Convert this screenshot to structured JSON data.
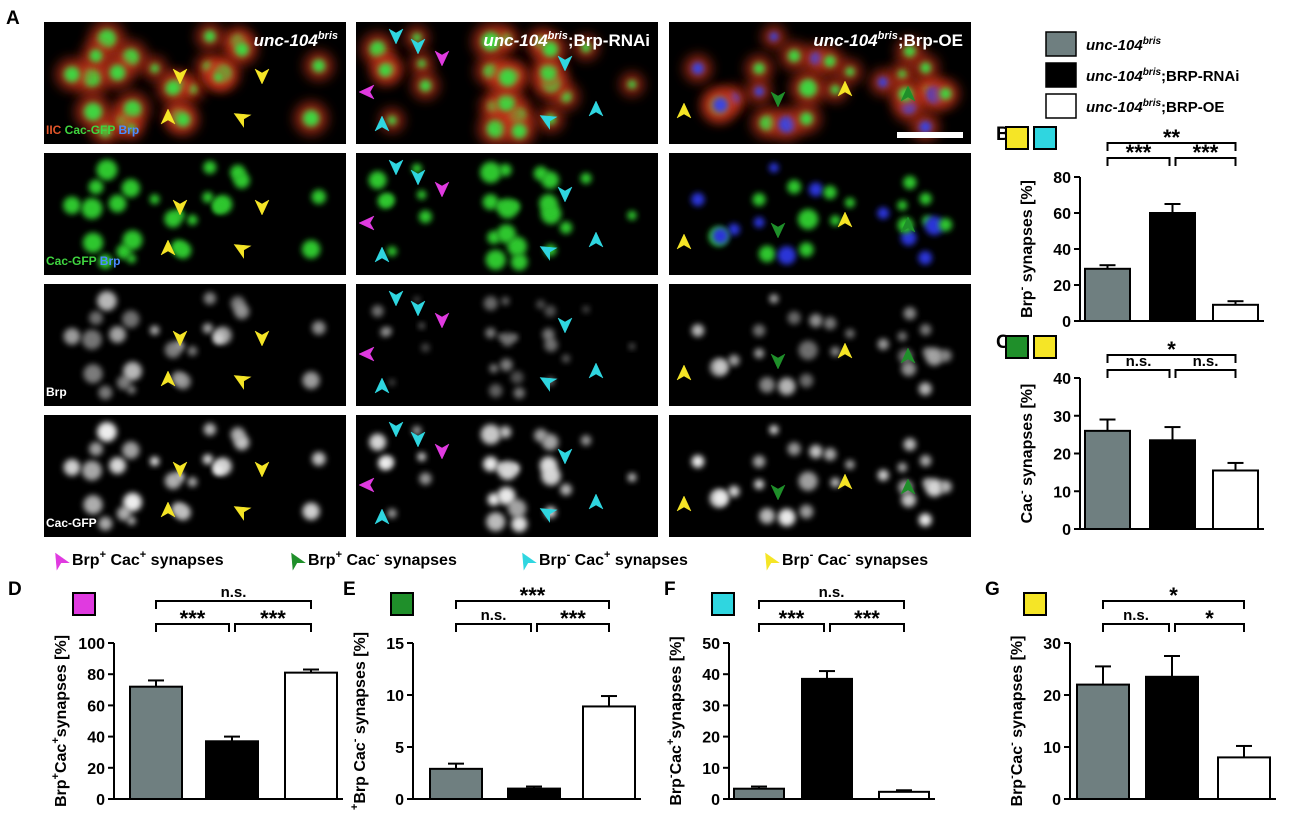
{
  "panel_letters": {
    "A": "A",
    "B": "B",
    "C": "C",
    "D": "D",
    "E": "E",
    "F": "F",
    "G": "G"
  },
  "colors": {
    "gray": "#6f7f80",
    "black": "#000000",
    "white": "#ffffff",
    "magenta": "#e03ae0",
    "green": "#1f8f2a",
    "cyan": "#2fd6e0",
    "yellow": "#f5e526"
  },
  "microscopy": {
    "columns": [
      {
        "geno_base": "unc-104",
        "geno_sup": "bris",
        "geno_suffix": ""
      },
      {
        "geno_base": "unc-104",
        "geno_sup": "bris",
        "geno_suffix": ";Brp-RNAi"
      },
      {
        "geno_base": "unc-104",
        "geno_sup": "bris",
        "geno_suffix": ";Brp-OE"
      }
    ],
    "row_labels": [
      {
        "parts": [
          {
            "t": "IIC",
            "c": "#e0552a"
          },
          {
            "t": " Cac-GFP ",
            "c": "#3fd43f"
          },
          {
            "t": "Brp",
            "c": "#4a8cff"
          }
        ]
      },
      {
        "parts": [
          {
            "t": "Cac-GFP ",
            "c": "#3fd43f"
          },
          {
            "t": "Brp",
            "c": "#4a8cff"
          }
        ]
      },
      {
        "parts": [
          {
            "t": "Brp",
            "c": "#ffffff"
          }
        ]
      },
      {
        "parts": [
          {
            "t": "Cac-GFP",
            "c": "#ffffff"
          }
        ]
      }
    ]
  },
  "legend": {
    "entries": [
      {
        "base": "unc-104",
        "sup": "bris",
        "suffix": "",
        "color": "gray"
      },
      {
        "base": "unc-104",
        "sup": "bris",
        "suffix": ";BRP-RNAi",
        "color": "black"
      },
      {
        "base": "unc-104",
        "sup": "bris",
        "suffix": ";BRP-OE",
        "color": "white"
      }
    ]
  },
  "arrow_legend": [
    {
      "color": "magenta",
      "a": "Brp",
      "a_sup": "+",
      "b": " Cac",
      "b_sup": "+",
      "rest": " synapses"
    },
    {
      "color": "green",
      "a": "Brp",
      "a_sup": "+",
      "b": " Cac",
      "b_sup": "-",
      "rest": " synapses"
    },
    {
      "color": "cyan",
      "a": "Brp",
      "a_sup": "-",
      "b": " Cac",
      "b_sup": "+",
      "rest": " synapses"
    },
    {
      "color": "yellow",
      "a": "Brp",
      "a_sup": "-",
      "b": " Cac",
      "b_sup": "-",
      "rest": " synapses"
    }
  ],
  "chart_data": [
    {
      "id": "B",
      "type": "bar",
      "categories": [
        "unc-104bris",
        "unc-104bris;BRP-RNAi",
        "unc-104bris;BRP-OE"
      ],
      "values": [
        29,
        60,
        9
      ],
      "errors": [
        2,
        5,
        2
      ],
      "ylim": [
        0,
        80
      ],
      "yticks": [
        "0",
        "20",
        "40",
        "60",
        "80"
      ],
      "ylabel_parts": [
        {
          "t": "Brp"
        },
        {
          "t": "-",
          "sup": true
        },
        {
          "t": " synapses [%]"
        }
      ],
      "indicator_colors": [
        "yellow",
        "cyan"
      ],
      "significance": [
        {
          "pair": [
            0,
            1
          ],
          "label": "***"
        },
        {
          "pair": [
            1,
            2
          ],
          "label": "***"
        },
        {
          "pair": [
            0,
            2
          ],
          "label": "**"
        }
      ]
    },
    {
      "id": "C",
      "type": "bar",
      "categories": [
        "unc-104bris",
        "unc-104bris;BRP-RNAi",
        "unc-104bris;BRP-OE"
      ],
      "values": [
        26,
        23.5,
        15.5
      ],
      "errors": [
        3,
        3.5,
        2
      ],
      "ylim": [
        0,
        40
      ],
      "yticks": [
        "0",
        "10",
        "20",
        "30",
        "40"
      ],
      "ylabel_parts": [
        {
          "t": "Cac"
        },
        {
          "t": "-",
          "sup": true
        },
        {
          "t": " synapses [%]"
        }
      ],
      "indicator_colors": [
        "green",
        "yellow"
      ],
      "significance": [
        {
          "pair": [
            0,
            1
          ],
          "label": "n.s."
        },
        {
          "pair": [
            1,
            2
          ],
          "label": "n.s."
        },
        {
          "pair": [
            0,
            2
          ],
          "label": "*"
        }
      ]
    },
    {
      "id": "D",
      "type": "bar",
      "categories": [
        "unc-104bris",
        "unc-104bris;BRP-RNAi",
        "unc-104bris;BRP-OE"
      ],
      "values": [
        72,
        37,
        81
      ],
      "errors": [
        4,
        3,
        2
      ],
      "ylim": [
        0,
        100
      ],
      "yticks": [
        "0",
        "20",
        "40",
        "60",
        "80",
        "100"
      ],
      "ylabel_parts": [
        {
          "t": "Brp"
        },
        {
          "t": "+",
          "sup": true
        },
        {
          "t": "Cac"
        },
        {
          "t": "+",
          "sup": true
        },
        {
          "t": "synapses [%]"
        }
      ],
      "indicator_colors": [
        "magenta"
      ],
      "significance": [
        {
          "pair": [
            0,
            1
          ],
          "label": "***"
        },
        {
          "pair": [
            1,
            2
          ],
          "label": "***"
        },
        {
          "pair": [
            0,
            2
          ],
          "label": "n.s."
        }
      ]
    },
    {
      "id": "E",
      "type": "bar",
      "categories": [
        "unc-104bris",
        "unc-104bris;BRP-RNAi",
        "unc-104bris;BRP-OE"
      ],
      "values": [
        2.9,
        1.0,
        8.9
      ],
      "errors": [
        0.5,
        0.2,
        1.0
      ],
      "ylim": [
        0,
        15
      ],
      "yticks": [
        "0",
        "5",
        "10",
        "15"
      ],
      "ylabel_parts": [
        {
          "t": "+",
          "sup": true
        },
        {
          "t": "Brp Cac"
        },
        {
          "t": "-",
          "sup": true
        },
        {
          "t": " synapses [%]"
        }
      ],
      "indicator_colors": [
        "green"
      ],
      "significance": [
        {
          "pair": [
            0,
            1
          ],
          "label": "n.s."
        },
        {
          "pair": [
            1,
            2
          ],
          "label": "***"
        },
        {
          "pair": [
            0,
            2
          ],
          "label": "***"
        }
      ]
    },
    {
      "id": "F",
      "type": "bar",
      "categories": [
        "unc-104bris",
        "unc-104bris;BRP-RNAi",
        "unc-104bris;BRP-OE"
      ],
      "values": [
        3.3,
        38.5,
        2.3
      ],
      "errors": [
        0.7,
        2.5,
        0.5
      ],
      "ylim": [
        0,
        50
      ],
      "yticks": [
        "0",
        "10",
        "20",
        "30",
        "40",
        "50"
      ],
      "ylabel_parts": [
        {
          "t": "Brp"
        },
        {
          "t": "-",
          "sup": true
        },
        {
          "t": "Cac"
        },
        {
          "t": "+",
          "sup": true
        },
        {
          "t": "synapses [%]"
        }
      ],
      "indicator_colors": [
        "cyan"
      ],
      "significance": [
        {
          "pair": [
            0,
            1
          ],
          "label": "***"
        },
        {
          "pair": [
            1,
            2
          ],
          "label": "***"
        },
        {
          "pair": [
            0,
            2
          ],
          "label": "n.s."
        }
      ]
    },
    {
      "id": "G",
      "type": "bar",
      "categories": [
        "unc-104bris",
        "unc-104bris;BRP-RNAi",
        "unc-104bris;BRP-OE"
      ],
      "values": [
        22,
        23.5,
        8
      ],
      "errors": [
        3.5,
        4,
        2.2
      ],
      "ylim": [
        0,
        30
      ],
      "yticks": [
        "0",
        "10",
        "20",
        "30"
      ],
      "ylabel_parts": [
        {
          "t": "Brp"
        },
        {
          "t": "-",
          "sup": true
        },
        {
          "t": "Cac"
        },
        {
          "t": "-",
          "sup": true
        },
        {
          "t": " synapses [%]"
        }
      ],
      "indicator_colors": [
        "yellow"
      ],
      "significance": [
        {
          "pair": [
            0,
            1
          ],
          "label": "n.s."
        },
        {
          "pair": [
            1,
            2
          ],
          "label": "*"
        },
        {
          "pair": [
            0,
            2
          ],
          "label": "*"
        }
      ]
    }
  ]
}
